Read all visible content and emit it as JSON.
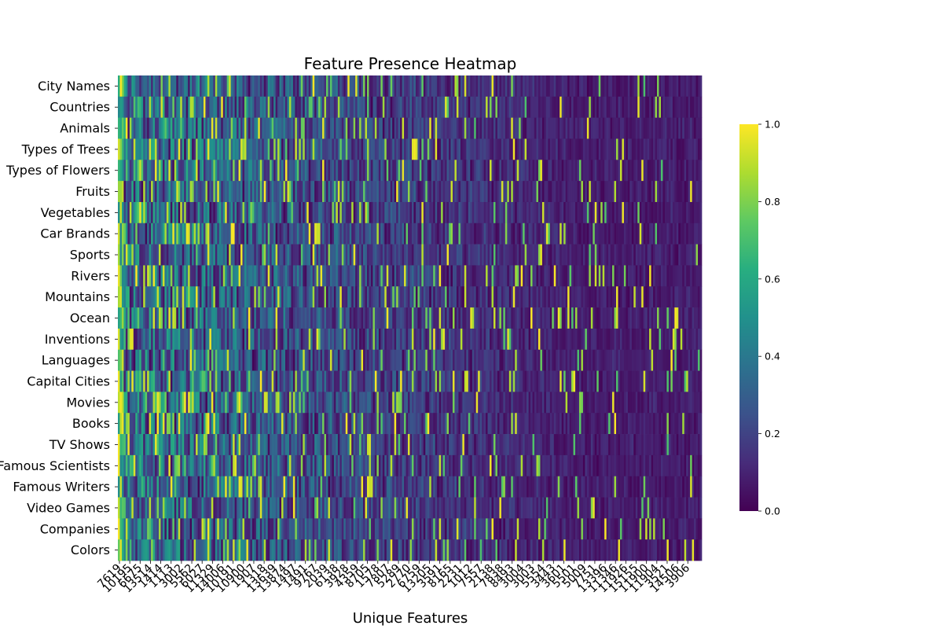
{
  "chart_data": {
    "type": "heatmap",
    "title": "Feature Presence Heatmap",
    "xlabel": "Unique Features",
    "ylabel": "",
    "rows": [
      "City Names",
      "Countries",
      "Animals",
      "Types of Trees",
      "Types of Flowers",
      "Fruits",
      "Vegetables",
      "Car Brands",
      "Sports",
      "Rivers",
      "Mountains",
      "Ocean",
      "Inventions",
      "Languages",
      "Capital Cities",
      "Movies",
      "Books",
      "TV Shows",
      "Famous Scientists",
      "Famous Writers",
      "Video Games",
      "Companies",
      "Colors"
    ],
    "x_tick_labels": [
      "7619",
      "10195",
      "6675",
      "13514",
      "1414",
      "1113",
      "3002",
      "5562",
      "6027",
      "11329",
      "14006",
      "10191",
      "10900",
      "1907",
      "1318",
      "13639",
      "13874",
      "1497",
      "1491",
      "9767",
      "2039",
      "6138",
      "3928",
      "4359",
      "8705",
      "1578",
      "7807",
      "5289",
      "2770",
      "6759",
      "13205",
      "3591",
      "8165",
      "2231",
      "1012",
      "7557",
      "2138",
      "7838",
      "8493",
      "3004",
      "3003",
      "5554",
      "3443",
      "3601",
      "5501",
      "5009",
      "7751",
      "13396",
      "11346",
      "11926",
      "15155",
      "11900",
      "11904",
      "3521",
      "14506",
      "3906"
    ],
    "colorscale": "viridis",
    "vmin": 0.0,
    "vmax": 1.0,
    "colorbar_ticks": [
      "0.0",
      "0.2",
      "0.4",
      "0.6",
      "0.8",
      "1.0"
    ],
    "n_columns": 300,
    "matrix_note": "dense per-cell values not legible; shown as procedural viridis texture with high values concentrated on the left"
  }
}
